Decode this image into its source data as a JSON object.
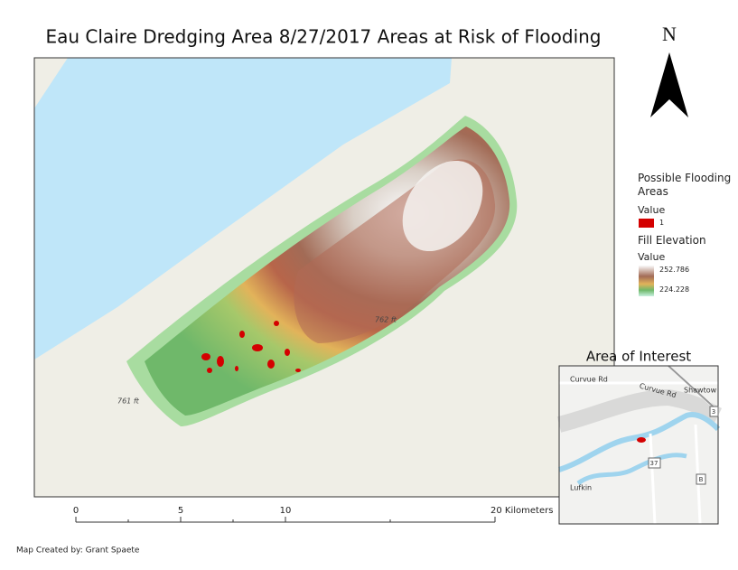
{
  "title": "Eau Claire Dredging Area 8/27/2017 Areas at Risk of Flooding",
  "north_arrow": {
    "label": "N"
  },
  "map": {
    "spot_labels": [
      "762 ft",
      "761 ft"
    ]
  },
  "legend": {
    "flood_title": "Possible Flooding Areas",
    "flood_field": "Value",
    "flood_item": "1",
    "elev_title": "Fill Elevation",
    "elev_field": "Value",
    "elev_high": "252.786",
    "elev_low": "224.228"
  },
  "inset": {
    "title": "Area of Interest",
    "labels": [
      "Curvue Rd",
      "Curvue Rd",
      "Shawtow",
      "Lufkin",
      "37",
      "B",
      "3"
    ]
  },
  "scale_bar": {
    "labels": [
      "0",
      "5",
      "10",
      "20 Kilometers"
    ]
  },
  "credit": "Map Created by: Grant Spaete"
}
